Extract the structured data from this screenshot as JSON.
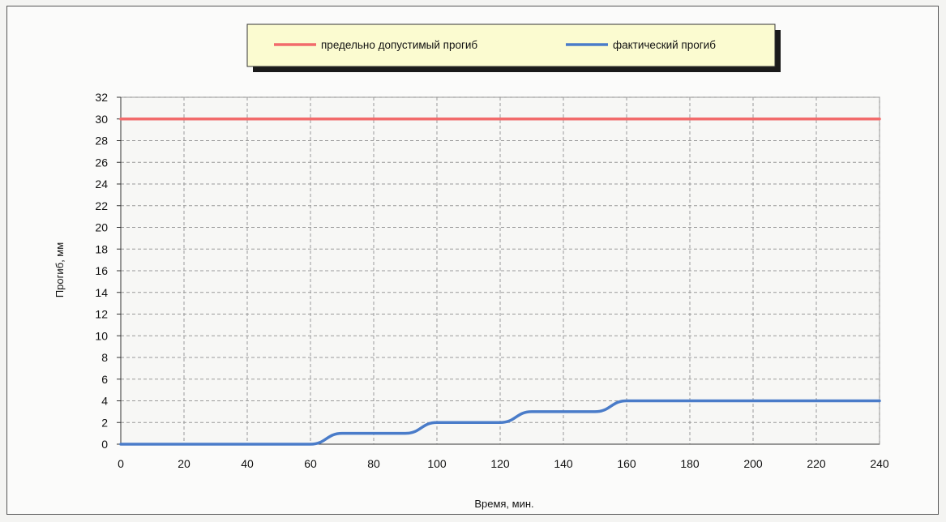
{
  "chart_data": {
    "type": "line",
    "xlabel": "Время, мин.",
    "ylabel": "Прогиб, мм",
    "xlim": [
      0,
      240
    ],
    "ylim": [
      0,
      32
    ],
    "x_ticks": [
      0,
      20,
      40,
      60,
      80,
      100,
      120,
      140,
      160,
      180,
      200,
      220,
      240
    ],
    "y_ticks": [
      0,
      2,
      4,
      6,
      8,
      10,
      12,
      14,
      16,
      18,
      20,
      22,
      24,
      26,
      28,
      30,
      32
    ],
    "grid": true,
    "legend_position": "top-center",
    "series": [
      {
        "name": "предельно допустимый прогиб",
        "color": "#f26b6b",
        "x": [
          0,
          240
        ],
        "y": [
          30,
          30
        ]
      },
      {
        "name": "фактический прогиб",
        "color": "#4a7cc9",
        "x": [
          0,
          60,
          70,
          80,
          90,
          100,
          110,
          120,
          130,
          140,
          150,
          160,
          170,
          180,
          200,
          220,
          240
        ],
        "y": [
          0,
          0,
          1,
          1,
          1,
          2,
          2,
          2,
          3,
          3,
          3,
          4,
          4,
          4,
          4,
          4,
          4
        ]
      }
    ]
  }
}
